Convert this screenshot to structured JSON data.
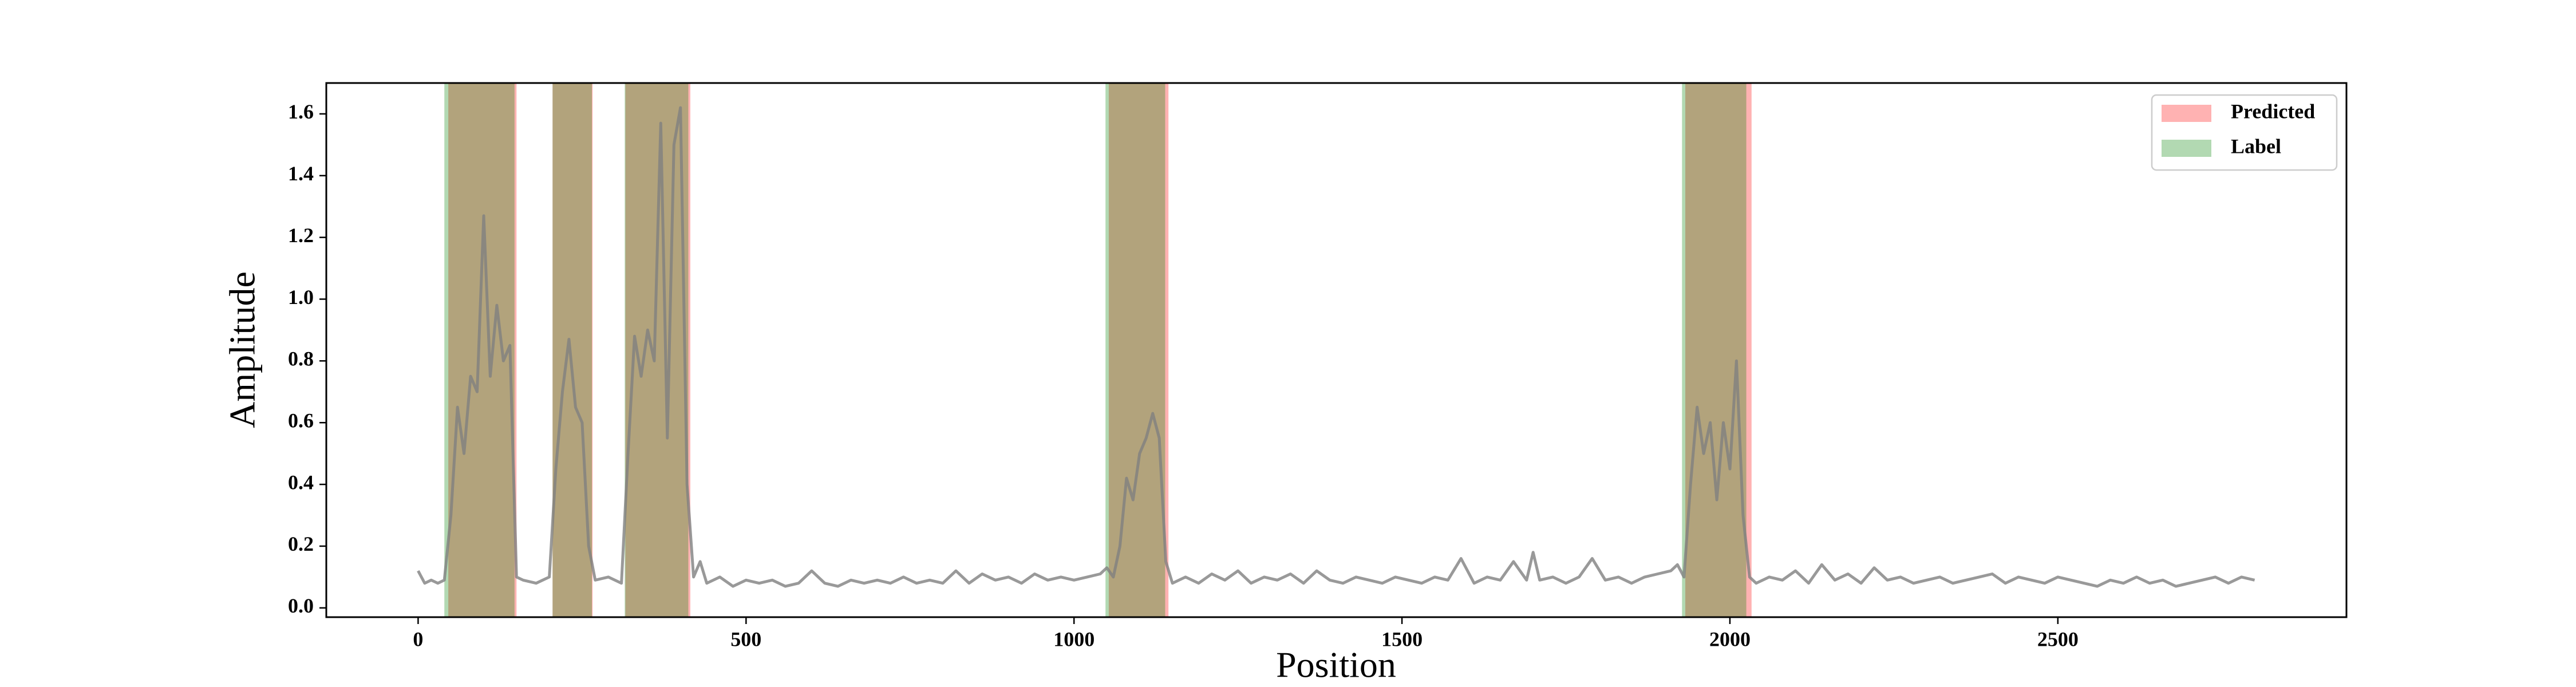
{
  "chart_data": {
    "type": "line",
    "xlabel": "Position",
    "ylabel": "Amplitude",
    "xlim": [
      -140,
      2940
    ],
    "ylim": [
      -0.03,
      1.7
    ],
    "xticks": [
      0,
      500,
      1000,
      1500,
      2000,
      2500
    ],
    "yticks": [
      {
        "value": 0,
        "label": "0.0"
      },
      0.2,
      0.4,
      0.6,
      0.8,
      {
        "value": 1,
        "label": "1.0"
      },
      1.2,
      1.4,
      1.6
    ],
    "legend": "upper right",
    "line": {
      "color": "gray",
      "alpha": 0.8,
      "x": [
        0,
        10,
        20,
        30,
        40,
        50,
        60,
        70,
        80,
        90,
        100,
        110,
        120,
        130,
        140,
        150,
        160,
        180,
        200,
        210,
        220,
        230,
        240,
        250,
        260,
        270,
        290,
        310,
        320,
        330,
        340,
        350,
        360,
        370,
        380,
        390,
        400,
        410,
        420,
        430,
        440,
        460,
        480,
        500,
        520,
        540,
        560,
        580,
        600,
        620,
        640,
        660,
        680,
        700,
        720,
        740,
        760,
        780,
        800,
        820,
        840,
        860,
        880,
        900,
        920,
        940,
        960,
        980,
        1000,
        1020,
        1040,
        1050,
        1060,
        1070,
        1080,
        1090,
        1100,
        1110,
        1120,
        1130,
        1140,
        1150,
        1170,
        1190,
        1210,
        1230,
        1250,
        1270,
        1290,
        1310,
        1330,
        1350,
        1370,
        1390,
        1410,
        1430,
        1450,
        1470,
        1490,
        1510,
        1530,
        1550,
        1570,
        1590,
        1610,
        1630,
        1650,
        1670,
        1690,
        1700,
        1710,
        1730,
        1750,
        1770,
        1790,
        1810,
        1830,
        1850,
        1870,
        1890,
        1910,
        1920,
        1930,
        1940,
        1950,
        1960,
        1970,
        1980,
        1990,
        2000,
        2010,
        2020,
        2030,
        2040,
        2060,
        2080,
        2100,
        2120,
        2140,
        2160,
        2180,
        2200,
        2220,
        2240,
        2260,
        2280,
        2300,
        2320,
        2340,
        2360,
        2380,
        2400,
        2420,
        2440,
        2460,
        2480,
        2500,
        2520,
        2540,
        2560,
        2580,
        2600,
        2620,
        2640,
        2660,
        2680,
        2700,
        2720,
        2740,
        2760,
        2780,
        2800
      ],
      "values": [
        0.12,
        0.08,
        0.09,
        0.08,
        0.09,
        0.3,
        0.65,
        0.5,
        0.75,
        0.7,
        1.27,
        0.75,
        0.98,
        0.8,
        0.85,
        0.1,
        0.09,
        0.08,
        0.1,
        0.45,
        0.7,
        0.87,
        0.65,
        0.6,
        0.2,
        0.09,
        0.1,
        0.08,
        0.5,
        0.88,
        0.75,
        0.9,
        0.8,
        1.57,
        0.55,
        1.5,
        1.62,
        0.4,
        0.1,
        0.15,
        0.08,
        0.1,
        0.07,
        0.09,
        0.08,
        0.09,
        0.07,
        0.08,
        0.12,
        0.08,
        0.07,
        0.09,
        0.08,
        0.09,
        0.08,
        0.1,
        0.08,
        0.09,
        0.08,
        0.12,
        0.08,
        0.11,
        0.09,
        0.1,
        0.08,
        0.11,
        0.09,
        0.1,
        0.09,
        0.1,
        0.11,
        0.13,
        0.1,
        0.2,
        0.42,
        0.35,
        0.5,
        0.55,
        0.63,
        0.55,
        0.15,
        0.08,
        0.1,
        0.08,
        0.11,
        0.09,
        0.12,
        0.08,
        0.1,
        0.09,
        0.11,
        0.08,
        0.12,
        0.09,
        0.08,
        0.1,
        0.09,
        0.08,
        0.1,
        0.09,
        0.08,
        0.1,
        0.09,
        0.16,
        0.08,
        0.1,
        0.09,
        0.15,
        0.09,
        0.18,
        0.09,
        0.1,
        0.08,
        0.1,
        0.16,
        0.09,
        0.1,
        0.08,
        0.1,
        0.11,
        0.12,
        0.14,
        0.1,
        0.4,
        0.65,
        0.5,
        0.6,
        0.35,
        0.6,
        0.45,
        0.8,
        0.3,
        0.1,
        0.08,
        0.1,
        0.09,
        0.12,
        0.08,
        0.14,
        0.09,
        0.11,
        0.08,
        0.13,
        0.09,
        0.1,
        0.08,
        0.09,
        0.1,
        0.08,
        0.09,
        0.1,
        0.11,
        0.08,
        0.1,
        0.09,
        0.08,
        0.1,
        0.09,
        0.08,
        0.07,
        0.09,
        0.08,
        0.1,
        0.08,
        0.09,
        0.07,
        0.08,
        0.09,
        0.1,
        0.08,
        0.1,
        0.09
      ]
    },
    "regions": [
      {
        "name": "Predicted",
        "color": "red",
        "alpha": 0.3,
        "spans": [
          [
            46,
            150
          ],
          [
            205,
            266
          ],
          [
            316,
            415
          ],
          [
            1053,
            1144
          ],
          [
            1932,
            2033
          ]
        ]
      },
      {
        "name": "Label",
        "color": "green",
        "alpha": 0.3,
        "spans": [
          [
            40,
            147
          ],
          [
            205,
            265
          ],
          [
            315,
            412
          ],
          [
            1048,
            1139
          ],
          [
            1927,
            2025
          ]
        ]
      }
    ]
  }
}
